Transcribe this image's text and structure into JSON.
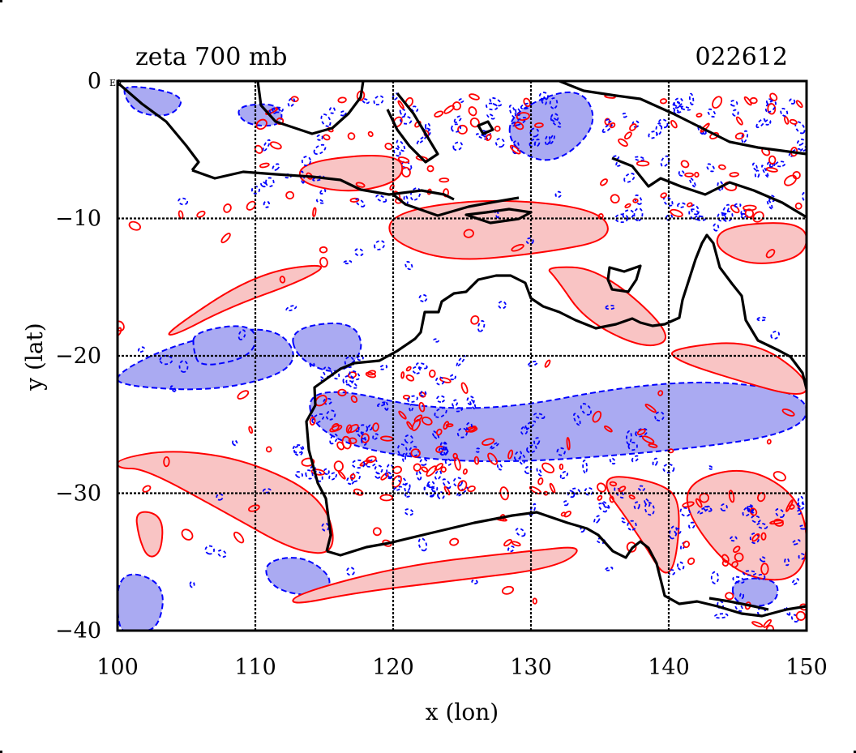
{
  "title_left": "zeta 700 mb",
  "title_right": "022612",
  "corner_label": "E0",
  "x_axis": {
    "label": "x (lon)",
    "ticks": [
      "100",
      "110",
      "120",
      "130",
      "140",
      "150"
    ],
    "range": [
      100,
      150
    ]
  },
  "y_axis": {
    "label": "y (lat)",
    "ticks": [
      "0",
      "−10",
      "−20",
      "−30",
      "−40"
    ],
    "range": [
      -40,
      0
    ]
  },
  "colors": {
    "positive_fill": "#f9c4c4",
    "positive_line": "#ff0000",
    "negative_fill": "#aaaaf2",
    "negative_line": "#0000ff",
    "coastline": "#000000",
    "grid": "#000000"
  },
  "chart_data": {
    "type": "contour_map",
    "variable": "zeta",
    "level": "700 mb",
    "grid": true,
    "grid_lon": [
      110,
      120,
      130,
      140
    ],
    "grid_lat": [
      -10,
      -20,
      -30
    ],
    "xlabel": "x (lon)",
    "ylabel": "y (lat)",
    "xlim": [
      100,
      150
    ],
    "ylim": [
      -40,
      0
    ],
    "positive_regions": [
      {
        "lon": [
          113.5,
          120.5,
          120.8,
          117,
          113
        ],
        "lat": [
          -5.8,
          -5.2,
          -7.2,
          -8.2,
          -7.4
        ]
      },
      {
        "lon": [
          120,
          127,
          135,
          136,
          131,
          124,
          119.5
        ],
        "lat": [
          -9.5,
          -8.5,
          -9.3,
          -11.5,
          -12.5,
          -13.2,
          -11.5
        ]
      },
      {
        "lon": [
          103.5,
          110,
          115.5,
          113.5,
          108,
          104
        ],
        "lat": [
          -18.3,
          -14,
          -13.2,
          -14.5,
          -16.5,
          -18.6
        ]
      },
      {
        "lon": [
          100,
          104,
          109.5,
          115,
          116,
          113,
          108,
          102,
          100
        ],
        "lat": [
          -27.5,
          -26.8,
          -27.6,
          -30.3,
          -34.4,
          -34.3,
          -31.5,
          -28.2,
          -28.2
        ]
      },
      {
        "lon": [
          101.3,
          103.3,
          103.2,
          102.2,
          101.5
        ],
        "lat": [
          -31.2,
          -31.6,
          -34.3,
          -34.8,
          -33.1
        ]
      },
      {
        "lon": [
          113,
          121,
          130,
          134,
          132,
          125,
          117.5,
          112.5
        ],
        "lat": [
          -37.3,
          -35.2,
          -34.2,
          -33.8,
          -35.4,
          -36.3,
          -37.2,
          -38.2
        ]
      },
      {
        "lon": [
          131,
          135,
          140.5,
          138.5,
          134,
          131.8
        ],
        "lat": [
          -13.5,
          -13.6,
          -18.5,
          -19.6,
          -17.5,
          -14.3
        ]
      },
      {
        "lon": [
          140,
          146,
          150,
          150,
          144,
          140.5
        ],
        "lat": [
          -19.5,
          -18.8,
          -21.5,
          -23.2,
          -21.5,
          -20.3
        ]
      },
      {
        "lon": [
          144,
          150,
          150,
          146,
          143.2
        ],
        "lat": [
          -10.5,
          -10.2,
          -12.8,
          -13.5,
          -12.1
        ]
      },
      {
        "lon": [
          141.5,
          146,
          150,
          150,
          145,
          141.2
        ],
        "lat": [
          -29,
          -28,
          -30.8,
          -36.4,
          -36.2,
          -31.5
        ]
      },
      {
        "lon": [
          134.5,
          139.5,
          141,
          140.2,
          137.8
        ],
        "lat": [
          -28.5,
          -29.2,
          -30.8,
          -37,
          -33
        ]
      }
    ],
    "negative_regions": [
      {
        "lon": [
          100,
          104.5,
          111.5,
          113.5,
          107.5,
          100
        ],
        "lat": [
          -21.2,
          -19,
          -17.6,
          -20.8,
          -22.6,
          -22.2
        ]
      },
      {
        "lon": [
          105.5,
          110,
          110,
          106,
          105.5
        ],
        "lat": [
          -18.2,
          -17.6,
          -20,
          -20.9,
          -19.6
        ]
      },
      {
        "lon": [
          112.5,
          117,
          118,
          116,
          113
        ],
        "lat": [
          -18,
          -17.4,
          -19.6,
          -21.5,
          -20.2
        ]
      },
      {
        "lon": [
          113.5,
          125,
          140,
          150,
          150,
          140,
          125,
          114.5
        ],
        "lat": [
          -21.8,
          -24.5,
          -21.6,
          -22.5,
          -25.5,
          -27,
          -28,
          -26.2
        ]
      },
      {
        "lon": [
          100,
          103.5,
          103,
          101,
          100
        ],
        "lat": [
          -35.5,
          -36.5,
          -40,
          -40,
          -40
        ]
      },
      {
        "lon": [
          110.5,
          113.5,
          115.8,
          114.5,
          111.2
        ],
        "lat": [
          -35,
          -34.5,
          -36.3,
          -37.6,
          -37
        ]
      },
      {
        "lon": [
          100.5,
          105,
          104,
          101.5,
          100.5
        ],
        "lat": [
          -0.2,
          -1,
          -2.6,
          -2.4,
          -1.2
        ]
      },
      {
        "lon": [
          128.4,
          133.5,
          135,
          131.7,
          128.5
        ],
        "lat": [
          -2.3,
          -0.2,
          -3.2,
          -6.2,
          -4.9
        ]
      },
      {
        "lon": [
          108.5,
          111.8,
          112,
          109.2
        ],
        "lat": [
          -1.8,
          -1.6,
          -3.3,
          -3.2
        ]
      },
      {
        "lon": [
          144.5,
          148,
          147.8,
          144.8
        ],
        "lat": [
          -36.2,
          -36.2,
          -38.2,
          -38.2
        ]
      }
    ]
  }
}
